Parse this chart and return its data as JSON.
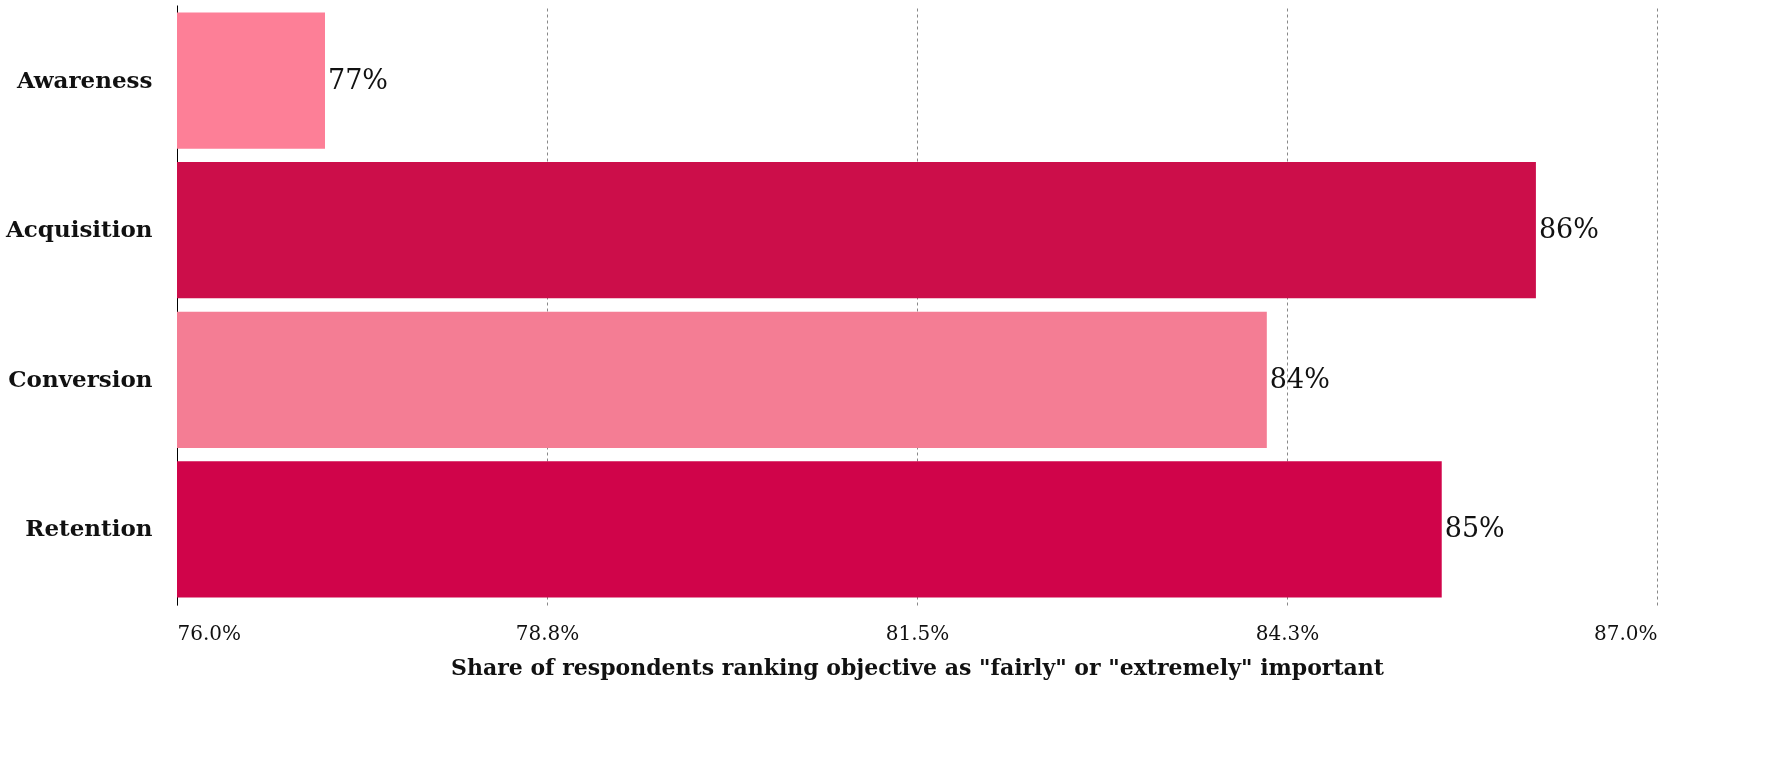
{
  "chart_data": {
    "type": "bar",
    "orientation": "horizontal",
    "categories": [
      "Awareness",
      "Acquisition",
      "Conversion",
      "Retention"
    ],
    "values": [
      77.1,
      86.1,
      84.1,
      85.4
    ],
    "value_labels": [
      "77%",
      "86%",
      "84%",
      "85%"
    ],
    "colors": [
      "#fd7f97",
      "#cc0e4a",
      "#f47d94",
      "#d0044a"
    ],
    "xlim": [
      76.0,
      87.0
    ],
    "xticks": [
      {
        "value": 76.0,
        "label": "76.0%"
      },
      {
        "value": 78.75,
        "label": "78.8%"
      },
      {
        "value": 81.5,
        "label": "81.5%"
      },
      {
        "value": 84.25,
        "label": "84.3%"
      },
      {
        "value": 87.0,
        "label": "87.0%"
      }
    ],
    "xlabel": "Share of respondents ranking objective as \"fairly\" or \"extremely\" important",
    "grid": "x"
  }
}
